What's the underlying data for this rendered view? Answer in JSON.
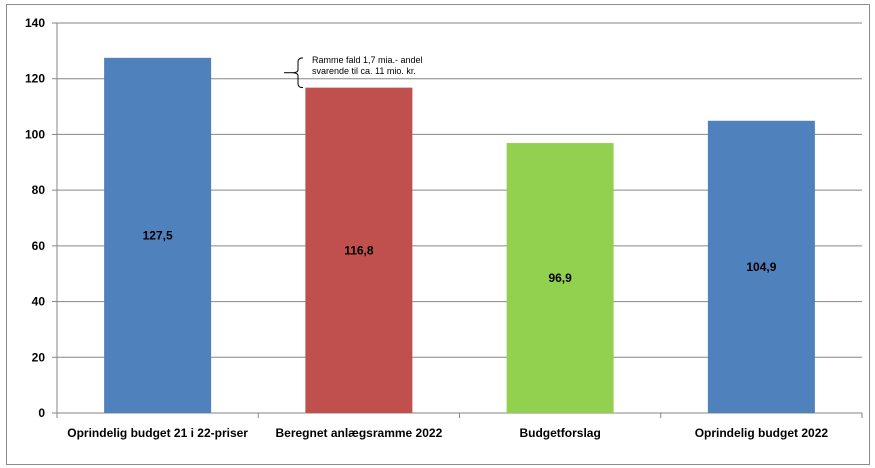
{
  "chart_data": {
    "type": "bar",
    "title": "",
    "xlabel": "",
    "ylabel": "",
    "categories": [
      "Oprindelig budget 21 i 22-priser",
      "Beregnet anlægsramme 2022",
      "Budgetforslag",
      "Oprindelig budget 2022"
    ],
    "values": [
      127.5,
      116.8,
      96.9,
      104.9
    ],
    "data_labels": [
      "127,5",
      "116,8",
      "96,9",
      "104,9"
    ],
    "bar_colors": [
      "#4f81bd",
      "#c0504d",
      "#92d050",
      "#4f81bd"
    ],
    "ylim": [
      0,
      140
    ],
    "yticks": [
      0,
      20,
      40,
      60,
      80,
      100,
      120,
      140
    ],
    "grid": true,
    "legend": "none",
    "annotation": {
      "lines": [
        "Ramme fald 1,7 mia.-  andel",
        "svarende til  ca. 11 mio. kr."
      ],
      "from_value": 127.5,
      "to_value": 116.8
    }
  }
}
